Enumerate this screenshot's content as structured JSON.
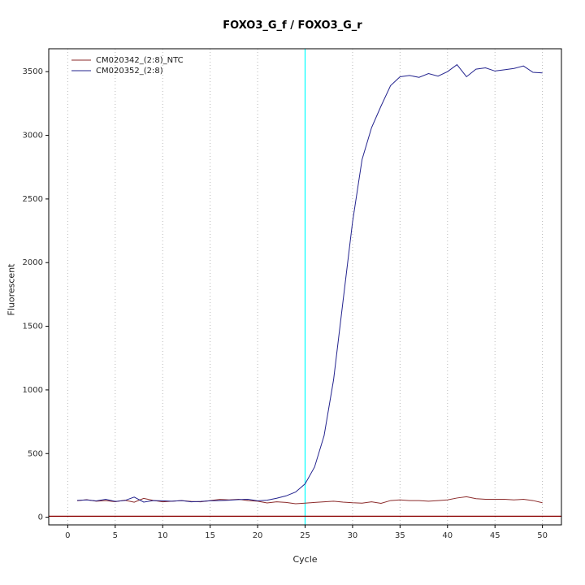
{
  "chart_data": {
    "type": "line",
    "title": "FOXO3_G_f / FOXO3_G_r",
    "xlabel": "Cycle",
    "ylabel": "Fluorescent",
    "xlim": [
      -2,
      52
    ],
    "ylim": [
      -60,
      3680
    ],
    "xticks": [
      0,
      5,
      10,
      15,
      20,
      25,
      30,
      35,
      40,
      45,
      50
    ],
    "yticks": [
      0,
      500,
      1000,
      1500,
      2000,
      2500,
      3000,
      3500
    ],
    "grid": "vertical-dotted",
    "grid_color": "#b8b8b8",
    "legend_position": "top-left",
    "marker_line": {
      "x": 25,
      "color": "#00ffff"
    },
    "threshold_line": {
      "y": 8,
      "color": "#8b0000"
    },
    "x": [
      1,
      2,
      3,
      4,
      5,
      6,
      7,
      8,
      9,
      10,
      11,
      12,
      13,
      14,
      15,
      16,
      17,
      18,
      19,
      20,
      21,
      22,
      23,
      24,
      25,
      26,
      27,
      28,
      29,
      30,
      31,
      32,
      33,
      34,
      35,
      36,
      37,
      38,
      39,
      40,
      41,
      42,
      43,
      44,
      45,
      46,
      47,
      48,
      49,
      50
    ],
    "series": [
      {
        "name": "CM020342_(2:8)_NTC",
        "color": "#8b2a2a",
        "values": [
          130,
          138,
          126,
          131,
          122,
          134,
          118,
          148,
          132,
          121,
          126,
          131,
          124,
          121,
          131,
          140,
          136,
          141,
          131,
          126,
          112,
          121,
          116,
          106,
          111,
          116,
          121,
          126,
          119,
          114,
          111,
          121,
          109,
          131,
          136,
          131,
          131,
          126,
          131,
          136,
          151,
          161,
          146,
          141,
          141,
          141,
          136,
          141,
          131,
          114
        ]
      },
      {
        "name": "CM020352_(2:8)",
        "color": "#23238e",
        "values": [
          132,
          136,
          128,
          141,
          124,
          131,
          158,
          119,
          131,
          129,
          126,
          131,
          121,
          124,
          129,
          131,
          134,
          139,
          141,
          129,
          134,
          149,
          168,
          198,
          262,
          395,
          640,
          1080,
          1700,
          2320,
          2810,
          3060,
          3230,
          3390,
          3460,
          3470,
          3455,
          3485,
          3465,
          3500,
          3555,
          3460,
          3520,
          3530,
          3505,
          3515,
          3525,
          3545,
          3495,
          3490
        ]
      }
    ]
  }
}
